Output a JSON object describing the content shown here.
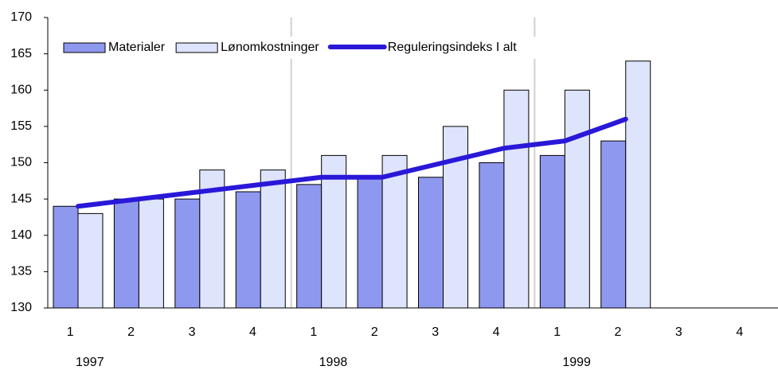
{
  "chart_data": {
    "type": "bar",
    "categories": [
      "1",
      "2",
      "3",
      "4",
      "1",
      "2",
      "3",
      "4",
      "1",
      "2",
      "3",
      "4"
    ],
    "years": [
      "1997",
      "1998",
      "1999"
    ],
    "series": [
      {
        "name": "Materialer",
        "type": "bar",
        "color": "#8f98ef",
        "values": [
          144,
          145,
          145,
          146,
          147,
          148,
          148,
          150,
          151,
          153,
          null,
          null
        ]
      },
      {
        "name": "Lønomkostninger",
        "type": "bar",
        "color": "#dde4fb",
        "values": [
          143,
          145,
          149,
          149,
          151,
          151,
          155,
          160,
          160,
          164,
          null,
          null
        ]
      },
      {
        "name": "Reguleringsindeks I alt",
        "type": "line",
        "color": "#2a18d8",
        "values": [
          144,
          145,
          146,
          147,
          148,
          148,
          150,
          152,
          153,
          156,
          null,
          null
        ]
      }
    ],
    "ylim": [
      130,
      170
    ],
    "yticks": [
      130,
      135,
      140,
      145,
      150,
      155,
      160,
      165,
      170
    ],
    "legend": "top-left"
  }
}
